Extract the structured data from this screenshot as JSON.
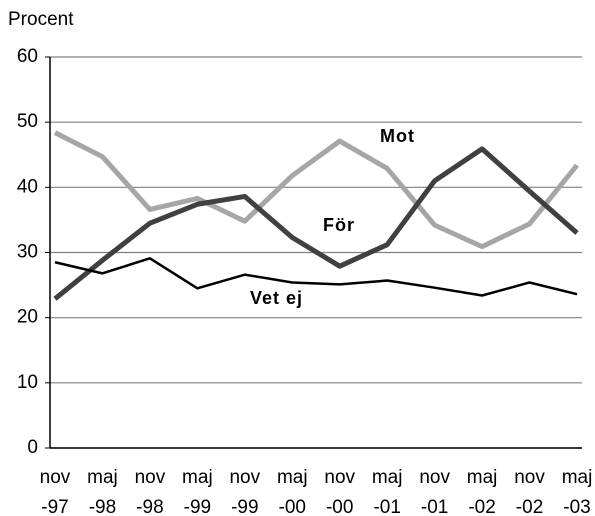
{
  "chart_data": {
    "type": "line",
    "y_label": "Procent",
    "categories": [
      "nov -97",
      "maj -98",
      "nov -98",
      "maj -99",
      "nov -99",
      "maj -00",
      "nov -00",
      "maj -01",
      "nov -01",
      "maj -02",
      "nov -02",
      "maj -03"
    ],
    "series": [
      {
        "name": "Mot",
        "color": "#a6a6a6",
        "values": [
          48.4,
          44.7,
          36.6,
          38.3,
          34.8,
          41.8,
          47.1,
          42.9,
          34.2,
          30.9,
          34.4,
          43.4
        ]
      },
      {
        "name": "För",
        "color": "#404040",
        "values": [
          22.9,
          28.8,
          34.5,
          37.4,
          38.6,
          32.3,
          27.9,
          31.2,
          41.0,
          45.9,
          39.4,
          33.0
        ]
      },
      {
        "name": "Vet ej",
        "color": "#000000",
        "values": [
          28.5,
          26.8,
          29.1,
          24.5,
          26.6,
          25.4,
          25.1,
          25.7,
          24.6,
          23.4,
          25.4,
          23.6
        ]
      }
    ],
    "ylim": [
      0,
      60
    ],
    "yticks": [
      0,
      10,
      20,
      30,
      40,
      50,
      60
    ],
    "grid": true
  }
}
